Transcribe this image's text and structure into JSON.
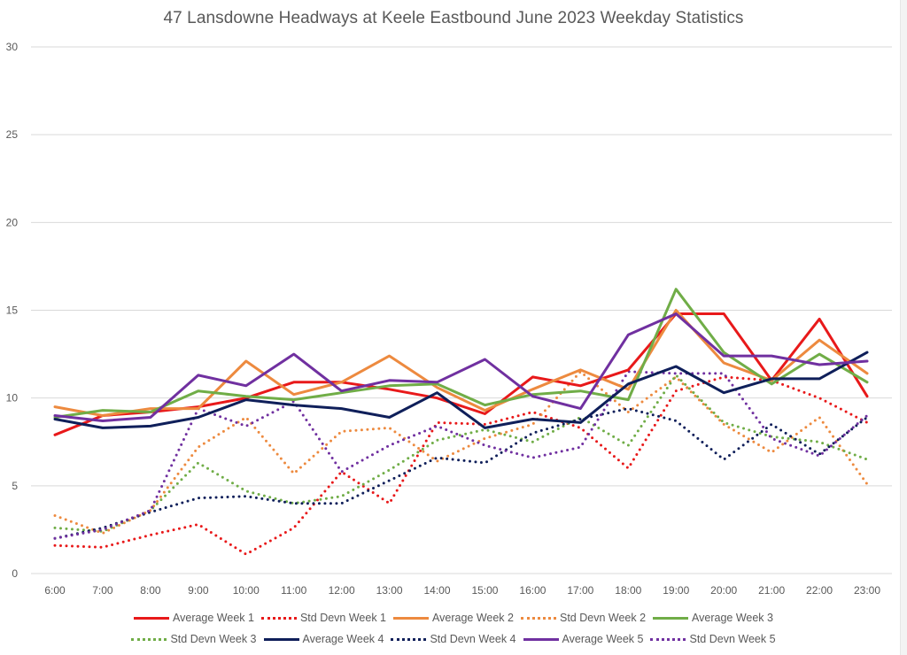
{
  "chart_data": {
    "type": "line",
    "title": "47 Lansdowne Headways at Keele Eastbound June 2023 Weekday Statistics",
    "xlabel": "",
    "ylabel": "",
    "ylim": [
      0,
      30
    ],
    "yticks": [
      0,
      5,
      10,
      15,
      20,
      25,
      30
    ],
    "grid": true,
    "legend_position": "bottom",
    "categories": [
      "6:00",
      "7:00",
      "8:00",
      "9:00",
      "10:00",
      "11:00",
      "12:00",
      "13:00",
      "14:00",
      "15:00",
      "16:00",
      "17:00",
      "18:00",
      "19:00",
      "20:00",
      "21:00",
      "22:00",
      "23:00"
    ],
    "series": [
      {
        "name": "Average Week 1",
        "color": "#e8191a",
        "style": "solid",
        "values": [
          7.9,
          9.0,
          9.2,
          9.5,
          10.0,
          10.9,
          10.9,
          10.5,
          10.0,
          9.1,
          11.2,
          10.7,
          11.6,
          14.8,
          14.8,
          11.0,
          14.5,
          10.1
        ]
      },
      {
        "name": "Std Devn Week 1",
        "color": "#e8191a",
        "style": "dotted",
        "values": [
          1.6,
          1.5,
          2.2,
          2.8,
          1.1,
          2.6,
          5.8,
          4.0,
          8.6,
          8.5,
          9.2,
          8.3,
          6.0,
          10.4,
          11.2,
          11.0,
          10.0,
          8.6
        ]
      },
      {
        "name": "Average Week 2",
        "color": "#ed8a3f",
        "style": "solid",
        "values": [
          9.5,
          9.0,
          9.4,
          9.4,
          12.1,
          10.2,
          10.9,
          12.4,
          10.6,
          9.3,
          10.5,
          11.6,
          10.5,
          15.0,
          12.0,
          11.0,
          13.3,
          11.4
        ]
      },
      {
        "name": "Std Devn Week 2",
        "color": "#ed8a3f",
        "style": "dotted",
        "values": [
          3.3,
          2.3,
          3.6,
          7.2,
          8.9,
          5.7,
          8.1,
          8.3,
          6.4,
          7.7,
          8.5,
          11.5,
          9.2,
          11.2,
          8.5,
          6.9,
          8.9,
          5.1
        ]
      },
      {
        "name": "Average Week 3",
        "color": "#70ad47",
        "style": "solid",
        "values": [
          8.9,
          9.3,
          9.2,
          10.4,
          10.1,
          9.9,
          10.3,
          10.7,
          10.8,
          9.6,
          10.2,
          10.4,
          9.9,
          16.2,
          12.6,
          10.8,
          12.5,
          10.9
        ]
      },
      {
        "name": "Std Devn Week 3",
        "color": "#70ad47",
        "style": "dotted",
        "values": [
          2.6,
          2.4,
          3.6,
          6.3,
          4.7,
          4.0,
          4.4,
          5.9,
          7.6,
          8.2,
          7.5,
          8.9,
          7.3,
          11.3,
          8.6,
          7.8,
          7.5,
          6.5
        ]
      },
      {
        "name": "Average Week 4",
        "color": "#0f1f5a",
        "style": "solid",
        "values": [
          8.8,
          8.3,
          8.4,
          8.9,
          9.9,
          9.6,
          9.4,
          8.9,
          10.3,
          8.3,
          8.8,
          8.6,
          10.8,
          11.8,
          10.3,
          11.1,
          11.1,
          12.6
        ]
      },
      {
        "name": "Std Devn Week 4",
        "color": "#0f1f5a",
        "style": "dotted",
        "values": [
          2.0,
          2.6,
          3.5,
          4.3,
          4.4,
          4.0,
          4.0,
          5.3,
          6.6,
          6.3,
          8.0,
          8.8,
          9.4,
          8.7,
          6.5,
          8.5,
          6.8,
          8.9
        ]
      },
      {
        "name": "Average Week 5",
        "color": "#7030a0",
        "style": "solid",
        "values": [
          9.0,
          8.7,
          8.9,
          11.3,
          10.7,
          12.5,
          10.4,
          11.0,
          10.9,
          12.2,
          10.1,
          9.4,
          13.6,
          14.8,
          12.4,
          12.4,
          11.9,
          12.1
        ]
      },
      {
        "name": "Std Devn Week 5",
        "color": "#7030a0",
        "style": "dotted",
        "values": [
          2.0,
          2.5,
          3.6,
          9.4,
          8.4,
          9.8,
          5.8,
          7.3,
          8.4,
          7.3,
          6.6,
          7.2,
          11.5,
          11.4,
          11.4,
          7.7,
          6.7,
          9.0
        ]
      }
    ],
    "legend_rows": [
      [
        0,
        1,
        2,
        3,
        4
      ],
      [
        5,
        6,
        7,
        8,
        9
      ]
    ],
    "gridline_color": "#d9d9d9"
  }
}
